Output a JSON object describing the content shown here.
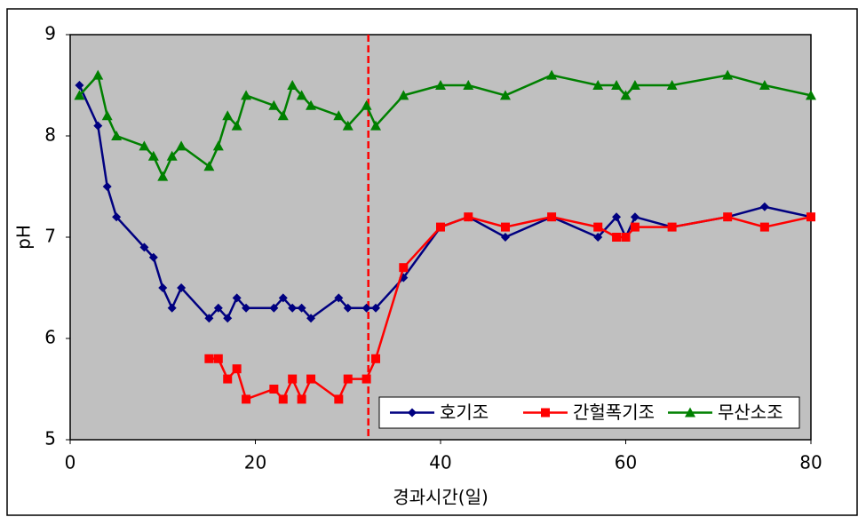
{
  "chart_data": {
    "type": "line",
    "xlabel": "경과시간(일)",
    "ylabel": "pH",
    "xlim": [
      0,
      80
    ],
    "xticks": [
      0,
      20,
      40,
      60,
      80
    ],
    "ylim": [
      5,
      9
    ],
    "yticks": [
      5,
      6,
      7,
      8,
      9
    ],
    "grid": false,
    "legend": "lower right",
    "reference_line": {
      "x": 32.2,
      "color": "#ff0000"
    },
    "series": [
      {
        "name": "호기조",
        "color": "#000080",
        "marker": "diamond",
        "x": [
          1,
          3,
          4,
          5,
          8,
          9,
          10,
          11,
          12,
          15,
          16,
          17,
          18,
          19,
          22,
          23,
          24,
          25,
          26,
          29,
          30,
          32,
          33,
          36,
          40,
          43,
          47,
          52,
          57,
          59,
          60,
          61,
          65,
          71,
          75,
          80
        ],
        "values": [
          8.5,
          8.1,
          7.5,
          7.2,
          6.9,
          6.8,
          6.5,
          6.3,
          6.5,
          6.2,
          6.3,
          6.2,
          6.4,
          6.3,
          6.3,
          6.4,
          6.3,
          6.3,
          6.2,
          6.4,
          6.3,
          6.3,
          6.3,
          6.6,
          7.1,
          7.2,
          7.0,
          7.2,
          7.0,
          7.2,
          7.0,
          7.2,
          7.1,
          7.2,
          7.3,
          7.2
        ]
      },
      {
        "name": "간헐폭기조",
        "color": "#ff0000",
        "marker": "square",
        "x": [
          15,
          16,
          17,
          18,
          19,
          22,
          23,
          24,
          25,
          26,
          29,
          30,
          32,
          33,
          36,
          40,
          43,
          47,
          52,
          57,
          59,
          60,
          61,
          65,
          71,
          75,
          80
        ],
        "values": [
          5.8,
          5.8,
          5.6,
          5.7,
          5.4,
          5.5,
          5.4,
          5.6,
          5.4,
          5.6,
          5.4,
          5.6,
          5.6,
          5.8,
          6.7,
          7.1,
          7.2,
          7.1,
          7.2,
          7.1,
          7.0,
          7.0,
          7.1,
          7.1,
          7.2,
          7.1,
          7.2
        ]
      },
      {
        "name": "무산소조",
        "color": "#008000",
        "marker": "triangle",
        "x": [
          1,
          3,
          4,
          5,
          8,
          9,
          10,
          11,
          12,
          15,
          16,
          17,
          18,
          19,
          22,
          23,
          24,
          25,
          26,
          29,
          30,
          32,
          33,
          36,
          40,
          43,
          47,
          52,
          57,
          59,
          60,
          61,
          65,
          71,
          75,
          80
        ],
        "values": [
          8.4,
          8.6,
          8.2,
          8.0,
          7.9,
          7.8,
          7.6,
          7.8,
          7.9,
          7.7,
          7.9,
          8.2,
          8.1,
          8.4,
          8.3,
          8.2,
          8.5,
          8.4,
          8.3,
          8.2,
          8.1,
          8.3,
          8.1,
          8.4,
          8.5,
          8.5,
          8.4,
          8.6,
          8.5,
          8.5,
          8.4,
          8.5,
          8.5,
          8.6,
          8.5,
          8.4
        ]
      }
    ]
  }
}
